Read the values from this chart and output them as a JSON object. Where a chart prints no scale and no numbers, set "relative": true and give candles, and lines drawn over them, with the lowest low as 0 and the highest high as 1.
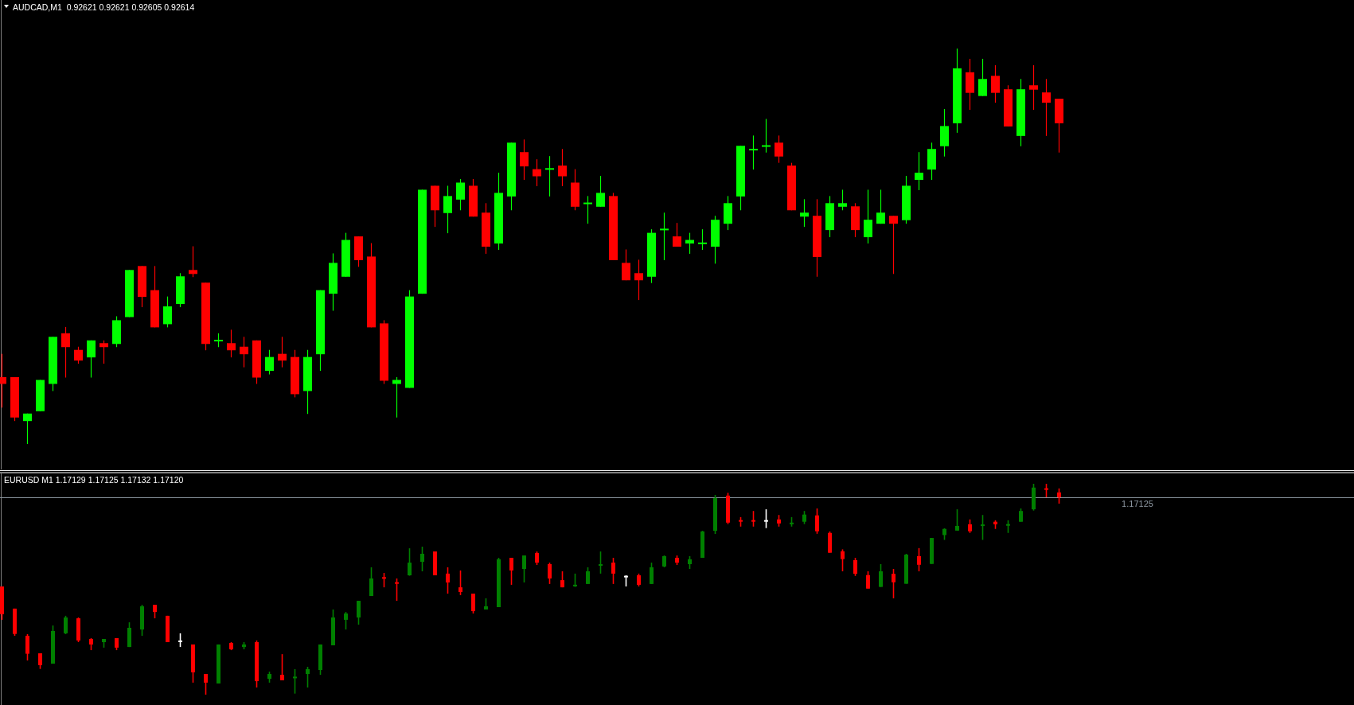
{
  "chart_data": [
    {
      "type": "candlestick",
      "title": "AUDCAD,M1  0.92621 0.92621 0.92605 0.92614",
      "relative": true,
      "categories": [
        null,
        null,
        null,
        null,
        null,
        null,
        null,
        null,
        null,
        null,
        null,
        null,
        null,
        null,
        null,
        null,
        null,
        null,
        null,
        null,
        null,
        null,
        null,
        null,
        null,
        null,
        null,
        null,
        null,
        null,
        null,
        null,
        null,
        null,
        null,
        null,
        null,
        null,
        null,
        null,
        null,
        null,
        null,
        null,
        null,
        null,
        null,
        null,
        null,
        null,
        null,
        null,
        null,
        null,
        null,
        null,
        null,
        null,
        null,
        null,
        null,
        null,
        null,
        null,
        null,
        null,
        null,
        null,
        null,
        null,
        null,
        null,
        null,
        null,
        null,
        null,
        null,
        null,
        null,
        null,
        null,
        null,
        null,
        null
      ],
      "ohlc": [
        [
          0.169,
          0.228,
          0.092,
          0.152
        ],
        [
          0.169,
          0.169,
          0.058,
          0.067
        ],
        [
          0.058,
          0.077,
          0,
          0.077
        ],
        [
          0.083,
          0.162,
          0.083,
          0.162
        ],
        [
          0.152,
          0.271,
          0.134,
          0.271
        ],
        [
          0.28,
          0.296,
          0.168,
          0.245
        ],
        [
          0.238,
          0.246,
          0.203,
          0.211
        ],
        [
          0.219,
          0.262,
          0.168,
          0.262
        ],
        [
          0.255,
          0.262,
          0.203,
          0.245
        ],
        [
          0.253,
          0.323,
          0.245,
          0.313
        ],
        [
          0.321,
          0.44,
          0.321,
          0.44
        ],
        [
          0.45,
          0.45,
          0.346,
          0.372
        ],
        [
          0.389,
          0.45,
          0.295,
          0.295
        ],
        [
          0.303,
          0.373,
          0.295,
          0.348
        ],
        [
          0.354,
          0.432,
          0.346,
          0.424
        ],
        [
          0.44,
          0.5,
          0.422,
          0.43
        ],
        [
          0.408,
          0.408,
          0.237,
          0.253
        ],
        [
          0.261,
          0.28,
          0.245,
          0.262
        ],
        [
          0.255,
          0.289,
          0.219,
          0.237
        ],
        [
          0.246,
          0.271,
          0.194,
          0.227
        ],
        [
          0.262,
          0.262,
          0.152,
          0.168
        ],
        [
          0.185,
          0.238,
          0.176,
          0.22
        ],
        [
          0.228,
          0.271,
          0.194,
          0.211
        ],
        [
          0.22,
          0.238,
          0.118,
          0.126
        ],
        [
          0.134,
          0.238,
          0.076,
          0.22
        ],
        [
          0.227,
          0.389,
          0.185,
          0.389
        ],
        [
          0.38,
          0.482,
          0.337,
          0.458
        ],
        [
          0.423,
          0.534,
          0.423,
          0.516
        ],
        [
          0.525,
          0.525,
          0.448,
          0.465
        ],
        [
          0.474,
          0.508,
          0.295,
          0.295
        ],
        [
          0.305,
          0.313,
          0.152,
          0.16
        ],
        [
          0.152,
          0.169,
          0.067,
          0.162
        ],
        [
          0.142,
          0.389,
          0.142,
          0.373
        ],
        [
          0.38,
          0.643,
          0.38,
          0.643
        ],
        [
          0.653,
          0.653,
          0.549,
          0.591
        ],
        [
          0.584,
          0.653,
          0.533,
          0.627
        ],
        [
          0.618,
          0.67,
          0.591,
          0.661
        ],
        [
          0.653,
          0.67,
          0.575,
          0.575
        ],
        [
          0.585,
          0.609,
          0.481,
          0.499
        ],
        [
          0.507,
          0.686,
          0.491,
          0.635
        ],
        [
          0.626,
          0.762,
          0.591,
          0.762
        ],
        [
          0.738,
          0.77,
          0.668,
          0.702
        ],
        [
          0.695,
          0.72,
          0.652,
          0.677
        ],
        [
          0.695,
          0.728,
          0.626,
          0.696
        ],
        [
          0.704,
          0.746,
          0.652,
          0.677
        ],
        [
          0.661,
          0.695,
          0.591,
          0.6
        ],
        [
          0.608,
          0.627,
          0.557,
          0.609
        ],
        [
          0.6,
          0.678,
          0.6,
          0.635
        ],
        [
          0.627,
          0.635,
          0.465,
          0.465
        ],
        [
          0.458,
          0.492,
          0.414,
          0.414
        ],
        [
          0.432,
          0.466,
          0.364,
          0.414
        ],
        [
          0.423,
          0.543,
          0.407,
          0.534
        ],
        [
          0.542,
          0.585,
          0.465,
          0.543
        ],
        [
          0.525,
          0.559,
          0.499,
          0.499
        ],
        [
          0.507,
          0.534,
          0.481,
          0.516
        ],
        [
          0.507,
          0.543,
          0.491,
          0.508
        ],
        [
          0.499,
          0.577,
          0.456,
          0.567
        ],
        [
          0.557,
          0.627,
          0.541,
          0.609
        ],
        [
          0.626,
          0.754,
          0.591,
          0.754
        ],
        [
          0.744,
          0.78,
          0.694,
          0.745
        ],
        [
          0.753,
          0.822,
          0.737,
          0.754
        ],
        [
          0.762,
          0.78,
          0.711,
          0.727
        ],
        [
          0.704,
          0.711,
          0.591,
          0.591
        ],
        [
          0.575,
          0.619,
          0.549,
          0.585
        ],
        [
          0.577,
          0.619,
          0.423,
          0.473
        ],
        [
          0.541,
          0.627,
          0.523,
          0.609
        ],
        [
          0.6,
          0.643,
          0.591,
          0.609
        ],
        [
          0.601,
          0.609,
          0.523,
          0.541
        ],
        [
          0.523,
          0.643,
          0.507,
          0.567
        ],
        [
          0.557,
          0.643,
          0.557,
          0.585
        ],
        [
          0.577,
          0.577,
          0.43,
          0.557
        ],
        [
          0.566,
          0.678,
          0.557,
          0.653
        ],
        [
          0.668,
          0.738,
          0.642,
          0.686
        ],
        [
          0.694,
          0.762,
          0.668,
          0.746
        ],
        [
          0.753,
          0.847,
          0.727,
          0.804
        ],
        [
          0.811,
          1,
          0.787,
          0.95
        ],
        [
          0.94,
          0.974,
          0.845,
          0.888
        ],
        [
          0.88,
          0.974,
          0.88,
          0.923
        ],
        [
          0.931,
          0.958,
          0.863,
          0.888
        ],
        [
          0.897,
          0.907,
          0.803,
          0.803
        ],
        [
          0.779,
          0.923,
          0.753,
          0.897
        ],
        [
          0.907,
          0.958,
          0.845,
          0.896
        ],
        [
          0.889,
          0.923,
          0.779,
          0.863
        ],
        [
          0.873,
          0.873,
          0.737,
          0.811
        ]
      ],
      "colors": [
        "#ff0000",
        "#ff0000",
        "#00ff00",
        "#00ff00",
        "#00ff00",
        "#ff0000",
        "#ff0000",
        "#00ff00",
        "#ff0000",
        "#00ff00",
        "#00ff00",
        "#ff0000",
        "#ff0000",
        "#00ff00",
        "#00ff00",
        "#ff0000",
        "#ff0000",
        "#00ff00",
        "#ff0000",
        "#ff0000",
        "#ff0000",
        "#00ff00",
        "#ff0000",
        "#ff0000",
        "#00ff00",
        "#00ff00",
        "#00ff00",
        "#00ff00",
        "#ff0000",
        "#ff0000",
        "#ff0000",
        "#00ff00",
        "#00ff00",
        "#00ff00",
        "#ff0000",
        "#00ff00",
        "#00ff00",
        "#ff0000",
        "#ff0000",
        "#00ff00",
        "#00ff00",
        "#ff0000",
        "#ff0000",
        "#00ff00",
        "#ff0000",
        "#ff0000",
        "#00ff00",
        "#00ff00",
        "#ff0000",
        "#ff0000",
        "#ff0000",
        "#00ff00",
        "#00ff00",
        "#ff0000",
        "#00ff00",
        "#00ff00",
        "#00ff00",
        "#00ff00",
        "#00ff00",
        "#00ff00",
        "#00ff00",
        "#ff0000",
        "#ff0000",
        "#00ff00",
        "#ff0000",
        "#00ff00",
        "#00ff00",
        "#ff0000",
        "#00ff00",
        "#00ff00",
        "#ff0000",
        "#00ff00",
        "#00ff00",
        "#00ff00",
        "#00ff00",
        "#00ff00",
        "#ff0000",
        "#00ff00",
        "#ff0000",
        "#ff0000",
        "#00ff00",
        "#ff0000",
        "#ff0000",
        "#ff0000"
      ]
    },
    {
      "type": "candlestick",
      "title": "EURUSD M1 1.17129 1.17125 1.17132 1.17120",
      "relative": true,
      "categories": [
        null,
        null,
        null,
        null,
        null,
        null,
        null,
        null,
        null,
        null,
        null,
        null,
        null,
        null,
        null,
        null,
        null,
        null,
        null,
        null,
        null,
        null,
        null,
        null,
        null,
        null,
        null,
        null,
        null,
        null,
        null,
        null,
        null,
        null,
        null,
        null,
        null,
        null,
        null,
        null,
        null,
        null,
        null,
        null,
        null,
        null,
        null,
        null,
        null,
        null,
        null,
        null,
        null,
        null,
        null,
        null,
        null,
        null,
        null,
        null,
        null,
        null,
        null,
        null,
        null,
        null,
        null,
        null,
        null,
        null,
        null,
        null,
        null,
        null,
        null,
        null,
        null,
        null,
        null,
        null,
        null,
        null,
        null,
        null
      ],
      "ohlc": [
        [
          0.513,
          0.513,
          0.355,
          0.382
        ],
        [
          0.408,
          0.408,
          0.279,
          0.288
        ],
        [
          0.279,
          0.287,
          0.162,
          0.194
        ],
        [
          0.196,
          0.196,
          0.122,
          0.14
        ],
        [
          0.147,
          0.328,
          0.147,
          0.302
        ],
        [
          0.291,
          0.374,
          0.287,
          0.366
        ],
        [
          0.362,
          0.366,
          0.249,
          0.257
        ],
        [
          0.264,
          0.268,
          0.211,
          0.238
        ],
        [
          0.249,
          0.264,
          0.223,
          0.264
        ],
        [
          0.268,
          0.268,
          0.211,
          0.223
        ],
        [
          0.226,
          0.343,
          0.226,
          0.317
        ],
        [
          0.309,
          0.426,
          0.279,
          0.419
        ],
        [
          0.426,
          0.426,
          0.362,
          0.392
        ],
        [
          0.374,
          0.374,
          0.249,
          0.249
        ],
        [
          0.253,
          0.291,
          0.226,
          0.253
        ],
        [
          0.238,
          0.238,
          0.057,
          0.106
        ],
        [
          0.098,
          0.098,
          0,
          0.057
        ],
        [
          0.053,
          0.238,
          0.053,
          0.238
        ],
        [
          0.245,
          0.249,
          0.211,
          0.215
        ],
        [
          0.226,
          0.249,
          0.215,
          0.238
        ],
        [
          0.249,
          0.257,
          0.034,
          0.064
        ],
        [
          0.075,
          0.109,
          0.057,
          0.098
        ],
        [
          0.094,
          0.192,
          0.068,
          0.068
        ],
        [
          0.079,
          0.121,
          0.005,
          0.084
        ],
        [
          0.098,
          0.132,
          0.034,
          0.121
        ],
        [
          0.117,
          0.238,
          0.094,
          0.238
        ],
        [
          0.234,
          0.404,
          0.234,
          0.366
        ],
        [
          0.355,
          0.392,
          0.309,
          0.385
        ],
        [
          0.366,
          0.445,
          0.332,
          0.445
        ],
        [
          0.468,
          0.604,
          0.468,
          0.551
        ],
        [
          0.555,
          0.577,
          0.509,
          0.552
        ],
        [
          0.531,
          0.551,
          0.445,
          0.528
        ],
        [
          0.566,
          0.694,
          0.564,
          0.626
        ],
        [
          0.63,
          0.702,
          0.585,
          0.668
        ],
        [
          0.679,
          0.679,
          0.566,
          0.566
        ],
        [
          0.574,
          0.604,
          0.479,
          0.532
        ],
        [
          0.509,
          0.589,
          0.472,
          0.487
        ],
        [
          0.479,
          0.479,
          0.385,
          0.396
        ],
        [
          0.404,
          0.457,
          0.404,
          0.419
        ],
        [
          0.415,
          0.649,
          0.415,
          0.642
        ],
        [
          0.649,
          0.649,
          0.521,
          0.589
        ],
        [
          0.596,
          0.66,
          0.532,
          0.66
        ],
        [
          0.672,
          0.679,
          0.615,
          0.626
        ],
        [
          0.619,
          0.626,
          0.525,
          0.551
        ],
        [
          0.543,
          0.585,
          0.509,
          0.509
        ],
        [
          0.516,
          0.574,
          0.511,
          0.519
        ],
        [
          0.525,
          0.604,
          0.525,
          0.585
        ],
        [
          0.614,
          0.679,
          0.574,
          0.616
        ],
        [
          0.626,
          0.649,
          0.525,
          0.574
        ],
        [
          0.56,
          0.566,
          0.513,
          0.56
        ],
        [
          0.566,
          0.574,
          0.513,
          0.521
        ],
        [
          0.525,
          0.626,
          0.525,
          0.604
        ],
        [
          0.608,
          0.66,
          0.604,
          0.657
        ],
        [
          0.649,
          0.66,
          0.615,
          0.626
        ],
        [
          0.619,
          0.657,
          0.596,
          0.642
        ],
        [
          0.649,
          0.777,
          0.649,
          0.774
        ],
        [
          0.777,
          0.947,
          0.762,
          0.932
        ],
        [
          0.944,
          0.957,
          0.809,
          0.816
        ],
        [
          0.825,
          0.842,
          0.797,
          0.823
        ],
        [
          0.825,
          0.871,
          0.797,
          0.823
        ],
        [
          0.824,
          0.879,
          0.79,
          0.824
        ],
        [
          0.831,
          0.852,
          0.797,
          0.812
        ],
        [
          0.811,
          0.842,
          0.797,
          0.813
        ],
        [
          0.82,
          0.871,
          0.809,
          0.854
        ],
        [
          0.85,
          0.883,
          0.763,
          0.775
        ],
        [
          0.767,
          0.774,
          0.673,
          0.673
        ],
        [
          0.68,
          0.689,
          0.585,
          0.643
        ],
        [
          0.638,
          0.649,
          0.563,
          0.573
        ],
        [
          0.567,
          0.585,
          0.503,
          0.503
        ],
        [
          0.511,
          0.619,
          0.511,
          0.585
        ],
        [
          0.573,
          0.596,
          0.457,
          0.533
        ],
        [
          0.526,
          0.668,
          0.526,
          0.664
        ],
        [
          0.657,
          0.695,
          0.585,
          0.616
        ],
        [
          0.62,
          0.743,
          0.62,
          0.743
        ],
        [
          0.757,
          0.789,
          0.734,
          0.786
        ],
        [
          0.778,
          0.879,
          0.778,
          0.8
        ],
        [
          0.808,
          0.831,
          0.767,
          0.775
        ],
        [
          0.802,
          0.852,
          0.734,
          0.805
        ],
        [
          0.82,
          0.827,
          0.786,
          0.808
        ],
        [
          0.804,
          0.827,
          0.767,
          0.806
        ],
        [
          0.82,
          0.883,
          0.82,
          0.871
        ],
        [
          0.879,
          1,
          0.873,
          0.982
        ],
        [
          0.976,
          1,
          0.936,
          0.974
        ],
        [
          0.959,
          0.978,
          0.906,
          0.936
        ]
      ],
      "colors": [
        "#ff0000",
        "#ff0000",
        "#ff0000",
        "#ff0000",
        "#008000",
        "#008000",
        "#ff0000",
        "#ff0000",
        "#008000",
        "#ff0000",
        "#008000",
        "#008000",
        "#ff0000",
        "#ff0000",
        "#ffffff",
        "#ff0000",
        "#ff0000",
        "#008000",
        "#ff0000",
        "#008000",
        "#ff0000",
        "#008000",
        "#ff0000",
        "#008000",
        "#008000",
        "#008000",
        "#008000",
        "#008000",
        "#008000",
        "#008000",
        "#ff0000",
        "#ff0000",
        "#008000",
        "#008000",
        "#ff0000",
        "#ff0000",
        "#ff0000",
        "#ff0000",
        "#008000",
        "#008000",
        "#ff0000",
        "#008000",
        "#ff0000",
        "#ff0000",
        "#ff0000",
        "#008000",
        "#008000",
        "#008000",
        "#ff0000",
        "#ffffff",
        "#ff0000",
        "#008000",
        "#008000",
        "#ff0000",
        "#008000",
        "#008000",
        "#008000",
        "#ff0000",
        "#ff0000",
        "#ff0000",
        "#ffffff",
        "#ff0000",
        "#008000",
        "#008000",
        "#ff0000",
        "#ff0000",
        "#ff0000",
        "#ff0000",
        "#ff0000",
        "#008000",
        "#ff0000",
        "#008000",
        "#ff0000",
        "#008000",
        "#008000",
        "#008000",
        "#ff0000",
        "#008000",
        "#ff0000",
        "#008000",
        "#008000",
        "#008000",
        "#ff0000",
        "#ff0000"
      ],
      "annotations": [
        "1.17125"
      ],
      "ref_lines": [
        {
          "axis": "y",
          "value": 0.936,
          "color": "#8c96a0"
        }
      ]
    }
  ]
}
